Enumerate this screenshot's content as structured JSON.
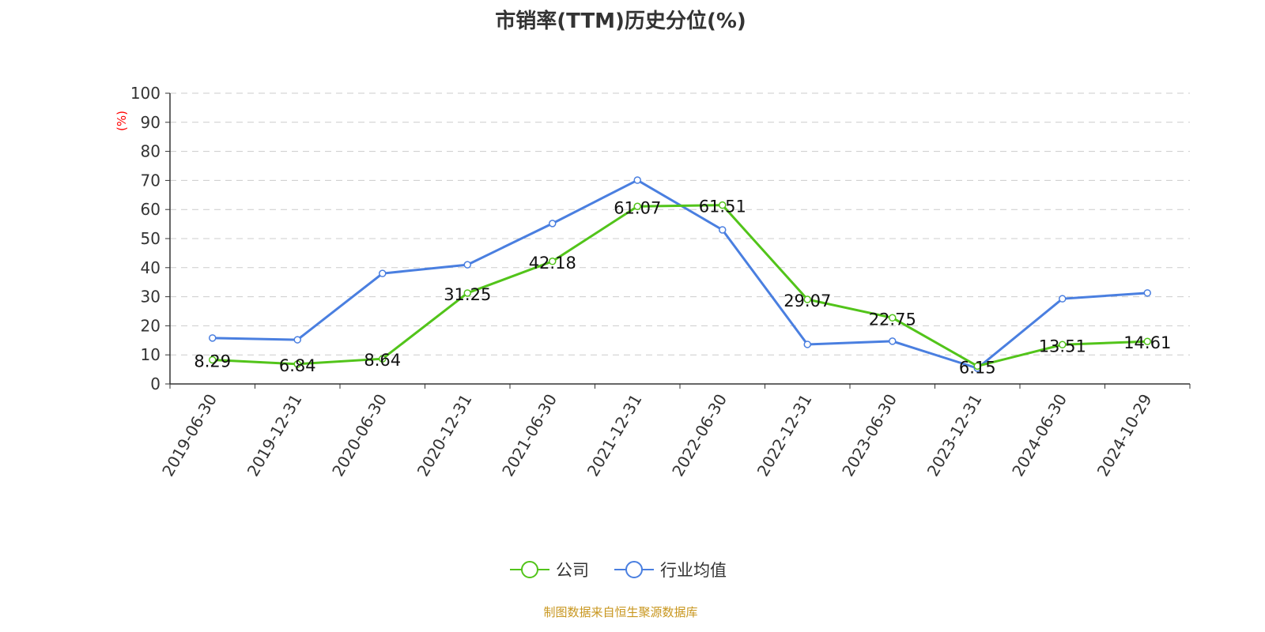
{
  "chart_data": {
    "type": "line",
    "title": "市销率(TTM)历史分位(%)",
    "ylabel": "(%)",
    "ylim": [
      0,
      100
    ],
    "yticks": [
      0,
      10,
      20,
      30,
      40,
      50,
      60,
      70,
      80,
      90,
      100
    ],
    "grid": true,
    "legend_position": "bottom",
    "categories": [
      "2019-06-30",
      "2019-12-31",
      "2020-06-30",
      "2020-12-31",
      "2021-06-30",
      "2021-12-31",
      "2022-06-30",
      "2022-12-31",
      "2023-06-30",
      "2023-12-31",
      "2024-06-30",
      "2024-10-29"
    ],
    "series": [
      {
        "name": "公司",
        "color": "#52c41a",
        "values": [
          8.29,
          6.84,
          8.64,
          31.25,
          42.18,
          61.07,
          61.51,
          29.07,
          22.75,
          6.15,
          13.51,
          14.61
        ],
        "labels": true
      },
      {
        "name": "行业均值",
        "color": "#4a7fe0",
        "values": [
          15.8,
          15.2,
          38.0,
          41.0,
          55.2,
          70.1,
          53.0,
          13.6,
          14.7,
          5.4,
          29.3,
          31.3
        ],
        "labels": false
      }
    ]
  },
  "footer": "制图数据来自恒生聚源数据库"
}
